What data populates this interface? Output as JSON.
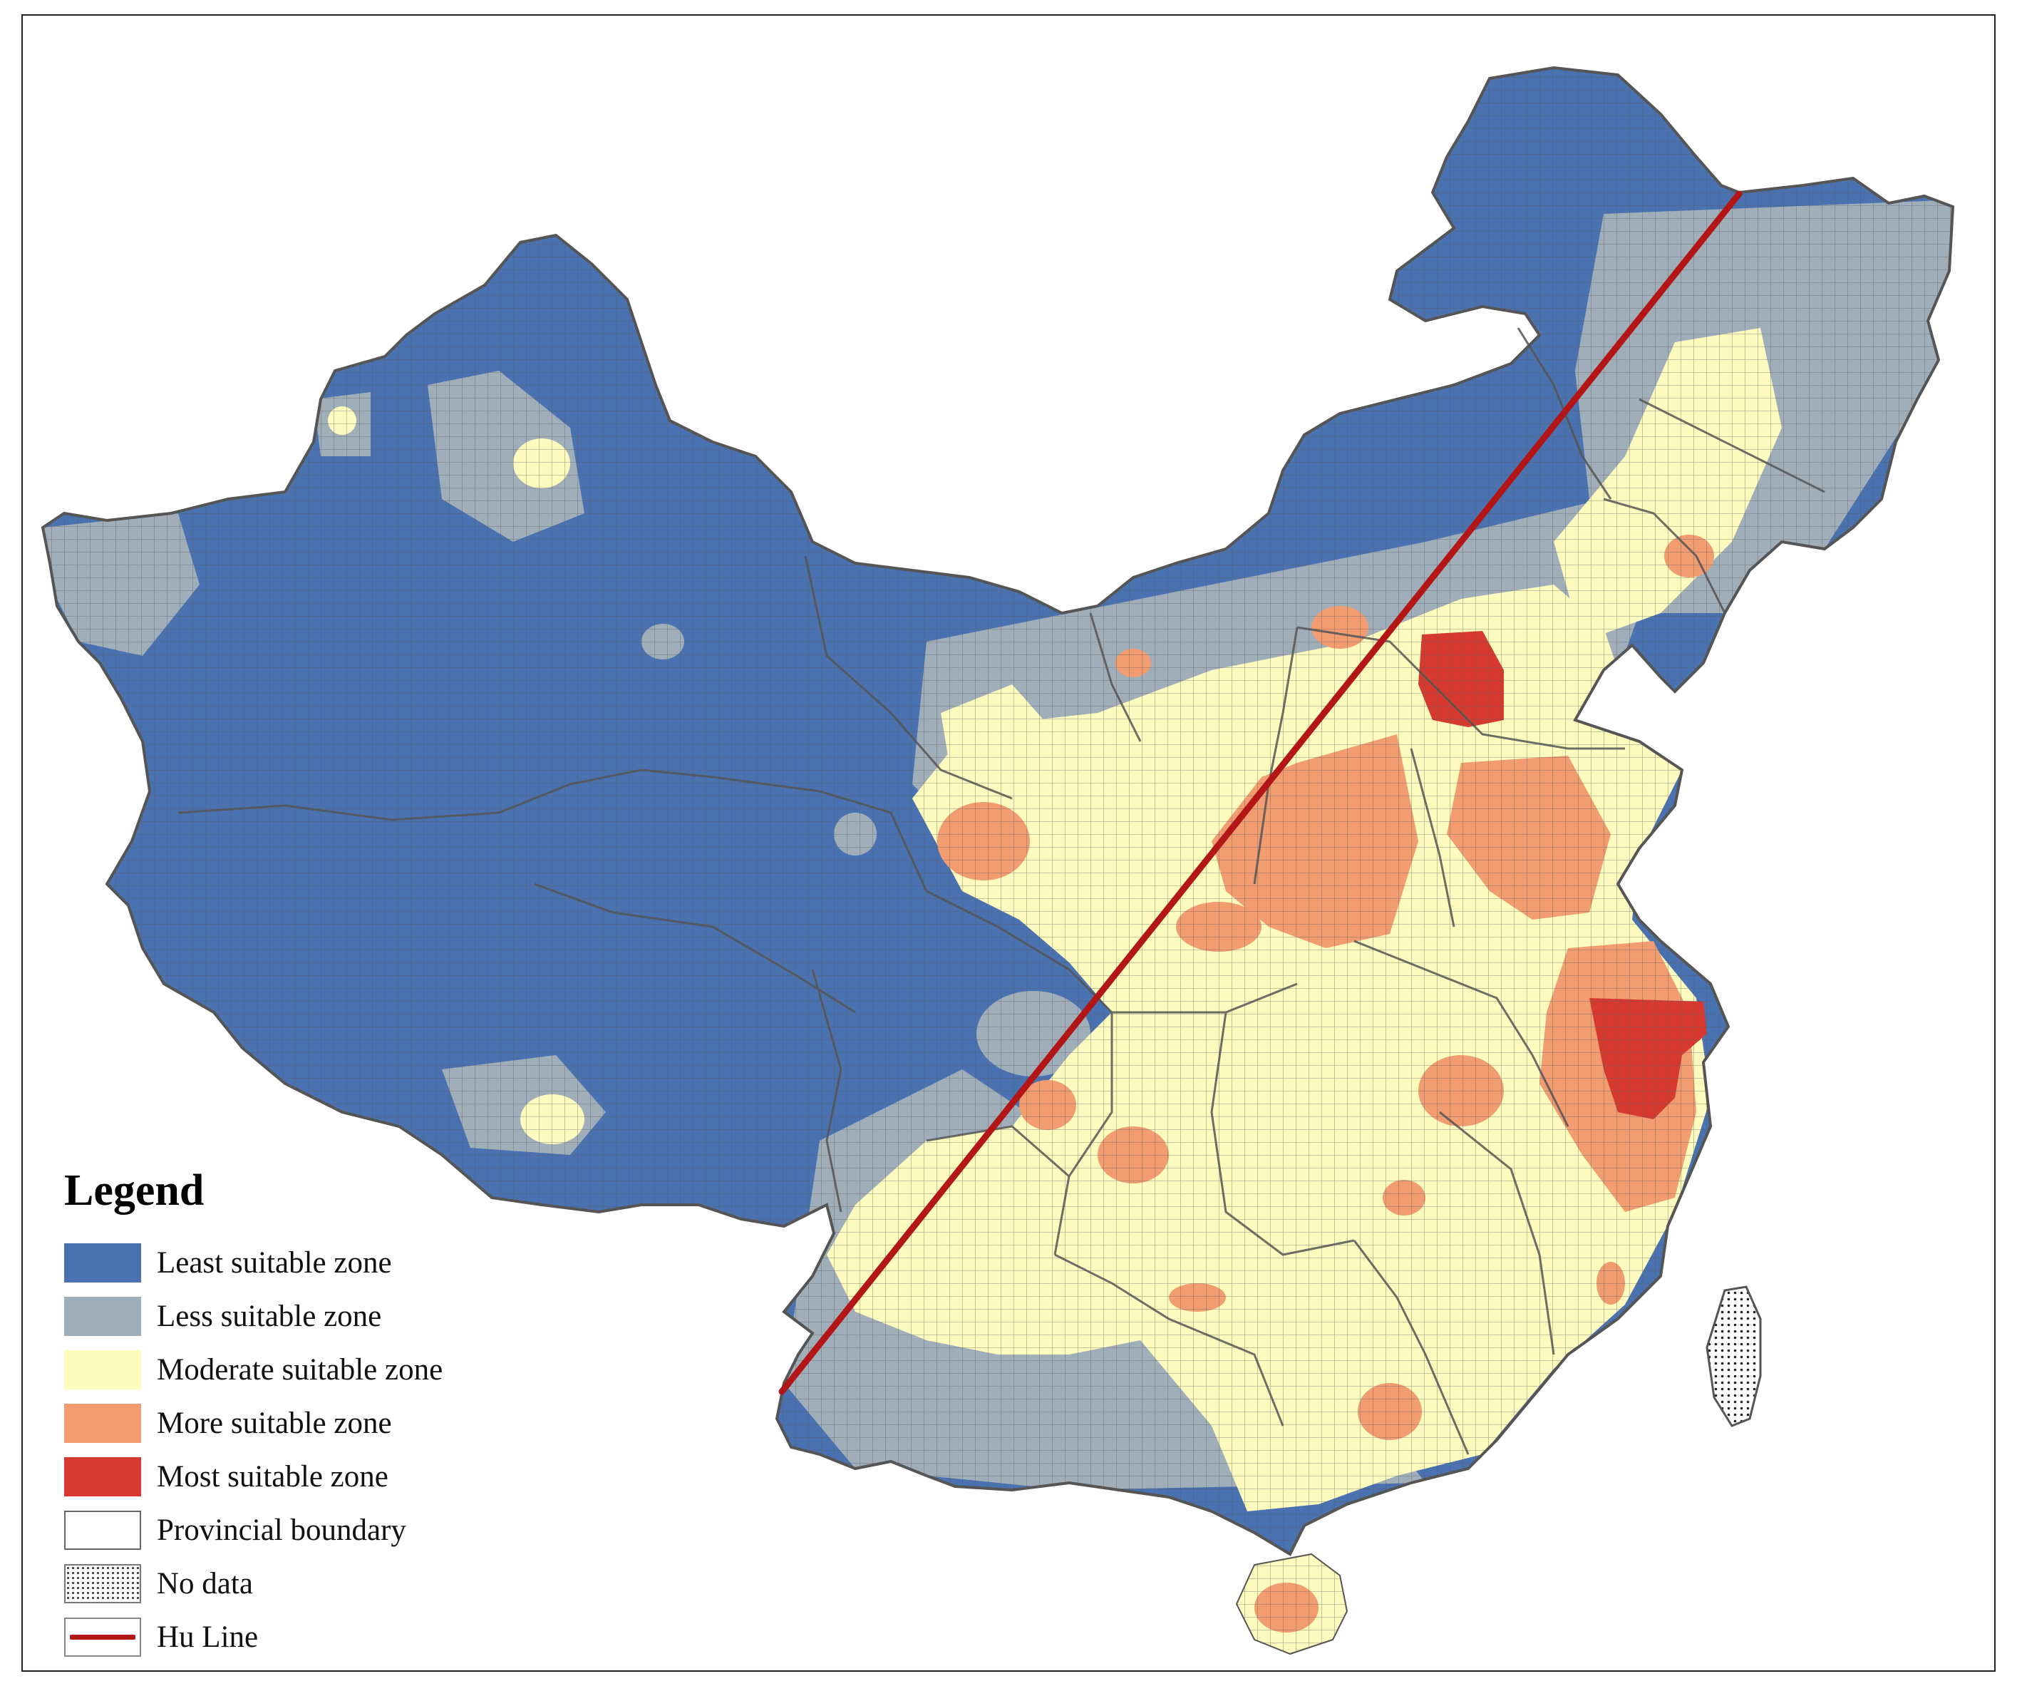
{
  "legend": {
    "title": "Legend",
    "items": [
      {
        "label": "Least suitable zone",
        "color": "#4a72b0",
        "kind": "fill"
      },
      {
        "label": "Less suitable zone",
        "color": "#a0aeba",
        "kind": "fill"
      },
      {
        "label": "Moderate suitable zone",
        "color": "#fdfbbd",
        "kind": "fill"
      },
      {
        "label": "More suitable zone",
        "color": "#f29c72",
        "kind": "fill"
      },
      {
        "label": "Most suitable zone",
        "color": "#d63a2f",
        "kind": "fill"
      },
      {
        "label": "Provincial boundary",
        "color": "#666666",
        "kind": "boundary"
      },
      {
        "label": "No data",
        "color": "#333333",
        "kind": "nodata"
      },
      {
        "label": "Hu Line",
        "color": "#b31616",
        "kind": "line"
      }
    ]
  },
  "map": {
    "grid_color": "#5c5c5c",
    "hu_line_color": "#b31616"
  }
}
